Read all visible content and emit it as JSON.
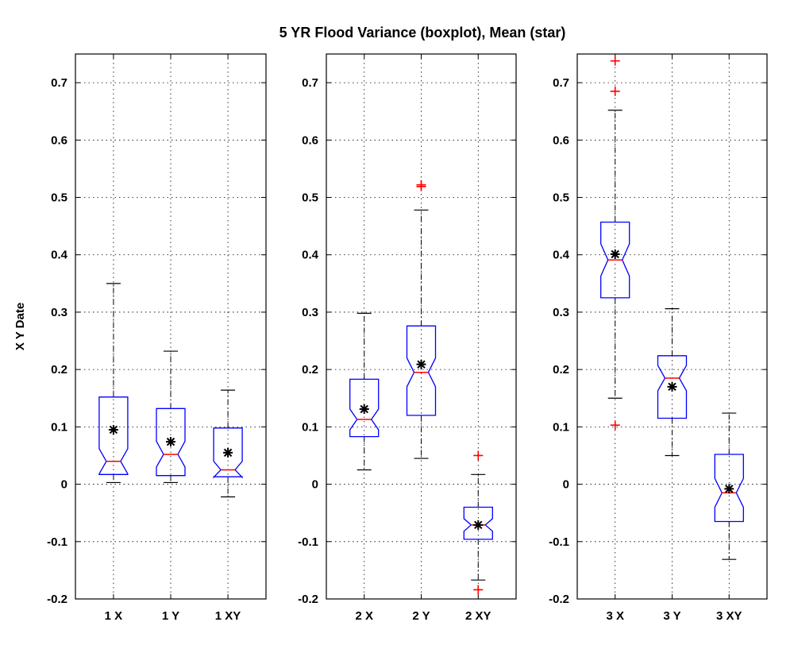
{
  "chart_data": {
    "type": "boxplot",
    "title": "5 YR Flood Variance (boxplot), Mean (star)",
    "ylabel": "X Y Date",
    "ylim": [
      -0.2,
      0.75
    ],
    "yticks": [
      -0.2,
      -0.1,
      0,
      0.1,
      0.2,
      0.3,
      0.4,
      0.5,
      0.6,
      0.7
    ],
    "ytick_labels": [
      "-0.2",
      "-0.1",
      "0",
      "0.1",
      "0.2",
      "0.3",
      "0.4",
      "0.5",
      "0.6",
      "0.7"
    ],
    "grid": true,
    "notched": true,
    "colors": {
      "box": "#0000ff",
      "median": "#ff0000",
      "outlier": "#ff0000",
      "mean": "#000000",
      "whisker": "#000000"
    },
    "panels": [
      {
        "boxes": [
          {
            "label": "1 X",
            "whisker_low": 0.003,
            "q1": 0.017,
            "median": 0.04,
            "q3": 0.152,
            "whisker_high": 0.35,
            "notch_low": 0.018,
            "notch_high": 0.062,
            "mean": 0.095,
            "outliers": []
          },
          {
            "label": "1 Y",
            "whisker_low": 0.003,
            "q1": 0.015,
            "median": 0.052,
            "q3": 0.132,
            "whisker_high": 0.232,
            "notch_low": 0.03,
            "notch_high": 0.075,
            "mean": 0.074,
            "outliers": []
          },
          {
            "label": "1 XY",
            "whisker_low": -0.022,
            "q1": 0.013,
            "median": 0.025,
            "q3": 0.098,
            "whisker_high": 0.164,
            "notch_low": 0.012,
            "notch_high": 0.04,
            "mean": 0.055,
            "outliers": []
          }
        ]
      },
      {
        "boxes": [
          {
            "label": "2 X",
            "whisker_low": 0.025,
            "q1": 0.083,
            "median": 0.113,
            "q3": 0.183,
            "whisker_high": 0.298,
            "notch_low": 0.095,
            "notch_high": 0.131,
            "mean": 0.131,
            "outliers": []
          },
          {
            "label": "2 Y",
            "whisker_low": 0.045,
            "q1": 0.12,
            "median": 0.195,
            "q3": 0.276,
            "whisker_high": 0.478,
            "notch_low": 0.17,
            "notch_high": 0.22,
            "mean": 0.209,
            "outliers": [
              0.519,
              0.522
            ]
          },
          {
            "label": "2 XY",
            "whisker_low": -0.167,
            "q1": -0.096,
            "median": -0.071,
            "q3": -0.04,
            "whisker_high": 0.017,
            "notch_low": -0.082,
            "notch_high": -0.06,
            "mean": -0.071,
            "outliers": [
              0.05,
              -0.184
            ]
          }
        ]
      },
      {
        "boxes": [
          {
            "label": "3 X",
            "whisker_low": 0.15,
            "q1": 0.325,
            "median": 0.391,
            "q3": 0.457,
            "whisker_high": 0.652,
            "notch_low": 0.363,
            "notch_high": 0.419,
            "mean": 0.401,
            "outliers": [
              0.738,
              0.685,
              0.103
            ]
          },
          {
            "label": "3 Y",
            "whisker_low": 0.05,
            "q1": 0.115,
            "median": 0.185,
            "q3": 0.224,
            "whisker_high": 0.306,
            "notch_low": 0.163,
            "notch_high": 0.207,
            "mean": 0.17,
            "outliers": []
          },
          {
            "label": "3 XY",
            "whisker_low": -0.131,
            "q1": -0.065,
            "median": -0.015,
            "q3": 0.052,
            "whisker_high": 0.124,
            "notch_low": -0.04,
            "notch_high": 0.01,
            "mean": -0.008,
            "outliers": []
          }
        ]
      }
    ]
  }
}
